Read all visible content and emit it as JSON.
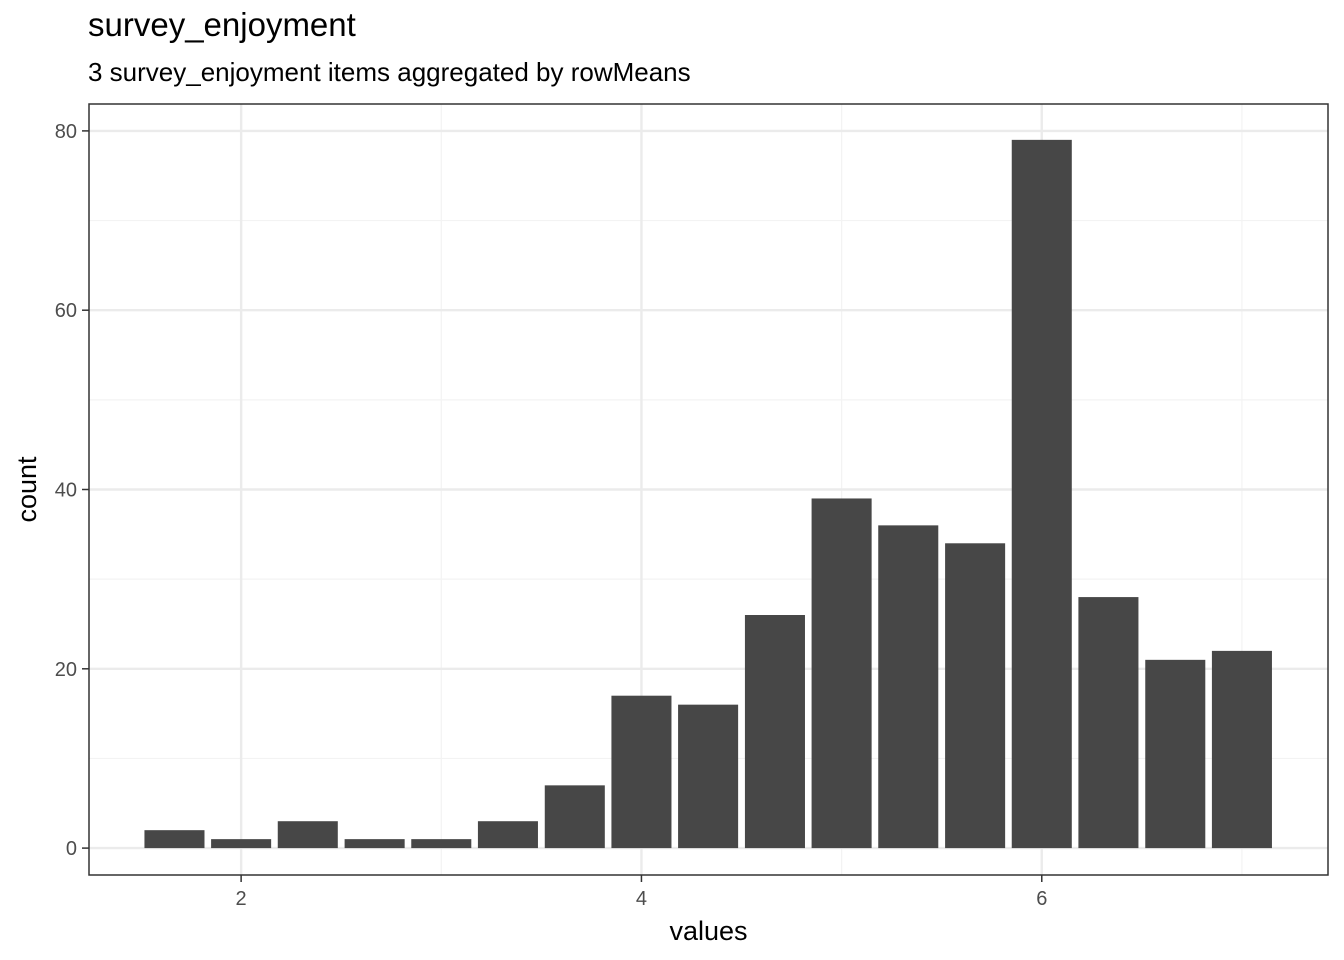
{
  "chart_data": {
    "type": "bar",
    "title": "survey_enjoyment",
    "subtitle": "3 survey_enjoyment items aggregated by rowMeans",
    "xlabel": "values",
    "ylabel": "count",
    "bin_centers": [
      1.667,
      2.0,
      2.333,
      2.667,
      3.0,
      3.333,
      3.667,
      4.0,
      4.333,
      4.667,
      5.0,
      5.333,
      5.667,
      6.0,
      6.333,
      6.667,
      7.0
    ],
    "values": [
      2,
      1,
      3,
      1,
      1,
      3,
      7,
      17,
      16,
      26,
      39,
      36,
      34,
      79,
      28,
      21,
      22
    ],
    "bin_width": 0.3333,
    "xlim": [
      1.24,
      7.43
    ],
    "ylim": [
      -3.0,
      83.0
    ],
    "xticks": [
      2,
      4,
      6
    ],
    "xtick_labels": [
      "2",
      "4",
      "6"
    ],
    "yticks": [
      0,
      20,
      40,
      60,
      80
    ],
    "ytick_labels": [
      "0",
      "20",
      "40",
      "60",
      "80"
    ],
    "grid": true,
    "colors": {
      "bar": "#474747",
      "grid_major": "#ebebeb",
      "grid_minor": "#f3f3f3",
      "panel_border": "#333333"
    }
  }
}
